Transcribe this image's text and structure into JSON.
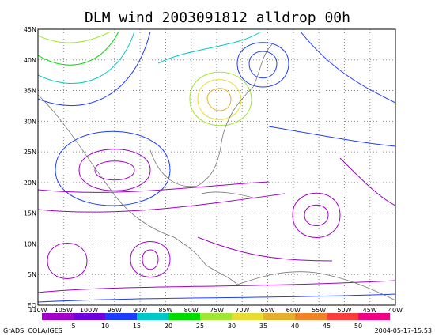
{
  "title": "DLM wind 2003091812 alldrop 00h",
  "x_labels": [
    "110W",
    "105W",
    "100W",
    "95W",
    "90W",
    "85W",
    "80W",
    "75W",
    "70W",
    "65W",
    "60W",
    "55W",
    "50W",
    "45W",
    "40W"
  ],
  "y_labels": [
    "EQ",
    "5N",
    "10N",
    "15N",
    "20N",
    "25N",
    "30N",
    "35N",
    "40N",
    "45N"
  ],
  "colorbar_labels": [
    5,
    10,
    15,
    20,
    25,
    30,
    35,
    40,
    45,
    50
  ],
  "footer_left": "GrADS: COLA/IGES",
  "footer_right": "2004-05-17-15:53"
}
